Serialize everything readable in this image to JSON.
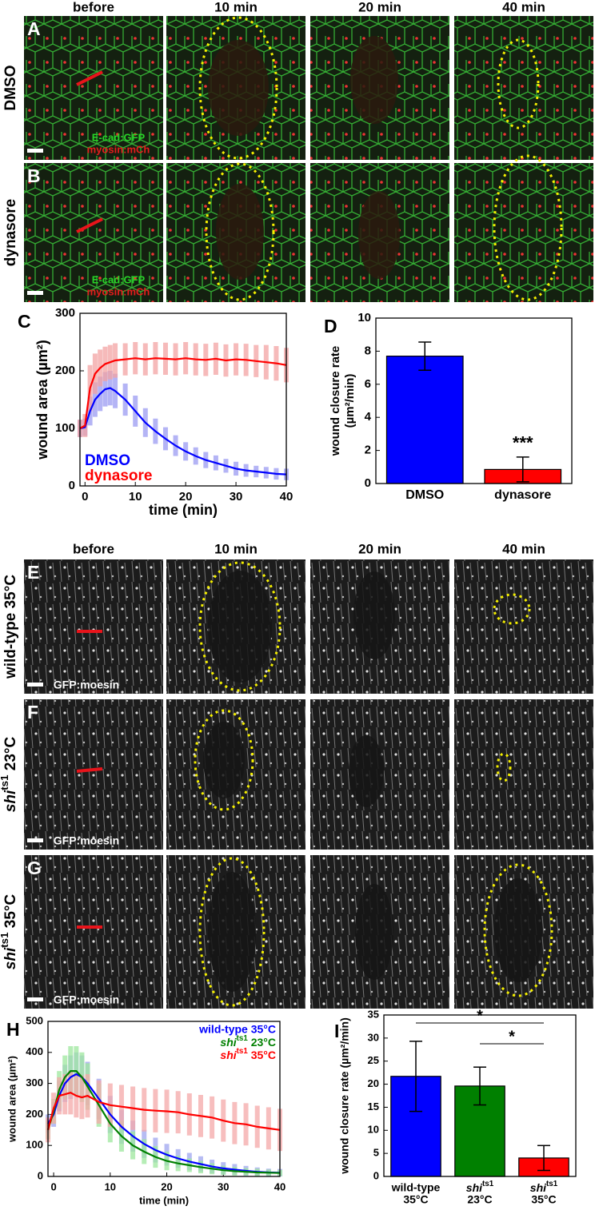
{
  "figure": {
    "panels": [
      "A",
      "B",
      "C",
      "D",
      "E",
      "F",
      "G",
      "H",
      "I"
    ],
    "columns_top": [
      "before",
      "10 min",
      "20 min",
      "40 min"
    ],
    "columns_bottom": [
      "before",
      "10 min",
      "20 min",
      "40 min"
    ],
    "rows": [
      "DMSO",
      "dynasore",
      "wild-type 35°C",
      {
        "base": "shi",
        "sup": "ts1",
        "rest": " 23°C"
      },
      {
        "base": "shi",
        "sup": "ts1",
        "rest": " 35°C"
      }
    ],
    "labels_top": [
      [
        "E-cad:GFP",
        "myosin:mCh"
      ],
      [
        "E-cad:GFP",
        "myosin:mCh"
      ]
    ],
    "labels_bottom": [
      "GFP:moesin",
      "GFP:moesin",
      "GFP:moesin"
    ]
  },
  "chart_data": [
    {
      "type": "line",
      "ylabel": "wound area (µm²)",
      "xlabel": "time (min)",
      "legend": "lower left",
      "x": [
        -1,
        0,
        1,
        2,
        3,
        4,
        5,
        6,
        8,
        10,
        12,
        14,
        16,
        18,
        20,
        22,
        24,
        26,
        28,
        30,
        32,
        34,
        36,
        38,
        40
      ],
      "xlim": [
        -1,
        40
      ],
      "xticks": [
        0,
        10,
        20,
        30,
        40
      ],
      "ylim": [
        0,
        300
      ],
      "yticks": [
        0,
        100,
        200,
        300
      ],
      "series": [
        {
          "name": "DMSO",
          "color": "#0000ff",
          "band_color": "#9b9bf2",
          "values": [
            100,
            102,
            130,
            150,
            160,
            168,
            170,
            165,
            150,
            130,
            110,
            95,
            82,
            70,
            60,
            52,
            45,
            40,
            35,
            30,
            27,
            25,
            23,
            21,
            20
          ],
          "error": [
            15,
            15,
            25,
            30,
            30,
            30,
            30,
            30,
            28,
            27,
            25,
            22,
            20,
            18,
            16,
            15,
            14,
            13,
            12,
            12,
            11,
            10,
            10,
            10,
            10
          ]
        },
        {
          "name": "dynasore",
          "color": "#ff0000",
          "band_color": "#f3a3a3",
          "values": [
            100,
            105,
            170,
            195,
            205,
            212,
            215,
            218,
            220,
            222,
            220,
            222,
            221,
            220,
            222,
            220,
            219,
            221,
            218,
            220,
            219,
            217,
            215,
            213,
            210
          ],
          "error": [
            15,
            20,
            40,
            35,
            32,
            30,
            30,
            30,
            28,
            28,
            28,
            28,
            28,
            28,
            28,
            28,
            28,
            28,
            28,
            28,
            28,
            28,
            30,
            30,
            30
          ]
        }
      ]
    },
    {
      "type": "bar",
      "ylabel": [
        "wound closure rate",
        "(µm²/min)"
      ],
      "categories": [
        "DMSO",
        "dynasore"
      ],
      "values": [
        7.7,
        0.85
      ],
      "errors": [
        0.85,
        0.75
      ],
      "colors": [
        "#0000ff",
        "#ff0000"
      ],
      "ylim": [
        0,
        10
      ],
      "yticks": [
        0,
        2,
        4,
        6,
        8,
        10
      ],
      "annotations": [
        "***"
      ]
    },
    {
      "type": "line",
      "ylabel": "wound area (µm²)",
      "xlabel": "time (min)",
      "legend": "upper right",
      "x": [
        -1,
        0,
        1,
        2,
        3,
        4,
        5,
        6,
        8,
        10,
        12,
        14,
        16,
        18,
        20,
        22,
        24,
        26,
        28,
        30,
        32,
        34,
        36,
        38,
        40
      ],
      "xlim": [
        -1,
        40
      ],
      "xticks": [
        0,
        10,
        20,
        30,
        40
      ],
      "ylim": [
        0,
        500
      ],
      "yticks": [
        0,
        100,
        200,
        300,
        400,
        500
      ],
      "series": [
        {
          "name": "wild-type 35°C",
          "color": "#0000ff",
          "band_color": "#a0a6f0",
          "values": [
            170,
            200,
            260,
            300,
            320,
            330,
            320,
            300,
            250,
            200,
            160,
            130,
            105,
            85,
            70,
            58,
            48,
            40,
            32,
            26,
            22,
            18,
            15,
            13,
            12
          ],
          "error": [
            30,
            40,
            50,
            60,
            70,
            70,
            70,
            70,
            65,
            60,
            55,
            50,
            45,
            40,
            35,
            30,
            28,
            25,
            22,
            20,
            18,
            16,
            14,
            12,
            12
          ]
        },
        {
          "name": {
            "base": "shi",
            "sup": "ts1",
            "rest": " 23°C"
          },
          "color": "#008000",
          "band_color": "#9ee89e",
          "values": [
            150,
            210,
            280,
            320,
            340,
            340,
            320,
            290,
            230,
            170,
            130,
            100,
            80,
            63,
            50,
            42,
            36,
            30,
            25,
            20,
            17,
            15,
            13,
            12,
            11
          ],
          "error": [
            30,
            40,
            60,
            70,
            80,
            80,
            80,
            75,
            70,
            60,
            50,
            45,
            40,
            35,
            30,
            25,
            22,
            20,
            18,
            15,
            14,
            12,
            12,
            10,
            10
          ]
        },
        {
          "name": {
            "base": "shi",
            "sup": "ts1",
            "rest": " 35°C"
          },
          "color": "#ff0000",
          "band_color": "#f5a9a9",
          "values": [
            150,
            220,
            260,
            265,
            270,
            260,
            255,
            260,
            240,
            230,
            225,
            220,
            215,
            212,
            210,
            207,
            200,
            195,
            190,
            180,
            172,
            168,
            160,
            155,
            150
          ],
          "error": [
            40,
            50,
            60,
            65,
            70,
            70,
            70,
            70,
            70,
            70,
            70,
            70,
            70,
            70,
            70,
            68,
            68,
            68,
            68,
            68,
            68,
            68,
            68,
            68,
            68
          ]
        }
      ]
    },
    {
      "type": "bar",
      "ylabel": "wound closure rate (µm²/min)",
      "categories": [
        [
          "wild-type",
          "35°C"
        ],
        [
          {
            "base": "shi",
            "sup": "ts1"
          },
          "23°C"
        ],
        [
          {
            "base": "shi",
            "sup": "ts1"
          },
          "35°C"
        ]
      ],
      "values": [
        21.7,
        19.6,
        4.0
      ],
      "errors": [
        7.6,
        4.1,
        2.7
      ],
      "colors": [
        "#0000ff",
        "#008000",
        "#ff0000"
      ],
      "ylim": [
        0,
        35
      ],
      "yticks": [
        0,
        5,
        10,
        15,
        20,
        25,
        30,
        35
      ],
      "annotations": [
        "*",
        "*"
      ]
    }
  ]
}
